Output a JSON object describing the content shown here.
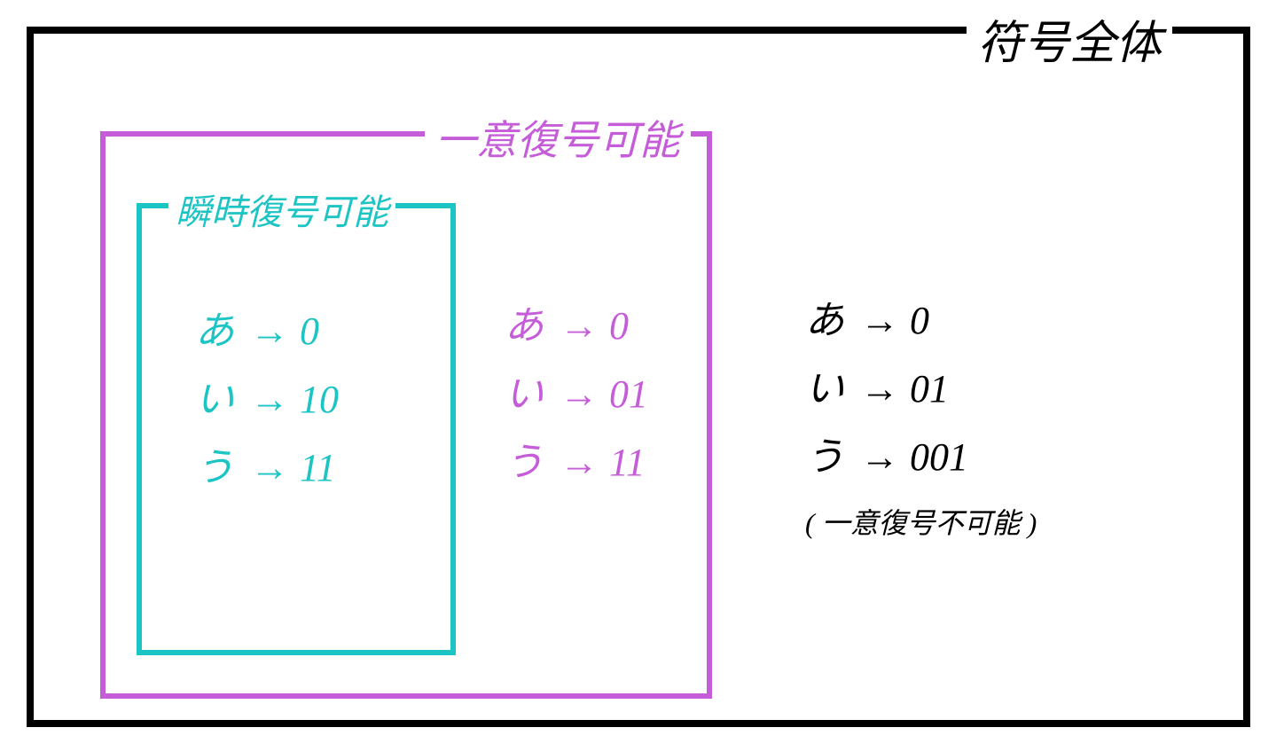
{
  "diagram": {
    "outer": {
      "label": "符号全体",
      "border_color": "#000000",
      "border_width": 8,
      "code": {
        "color": "#000000",
        "rows": [
          {
            "sym": "あ",
            "val": "0"
          },
          {
            "sym": "い",
            "val": "01"
          },
          {
            "sym": "う",
            "val": "001"
          }
        ],
        "note": "( 一意復号不可能 )"
      }
    },
    "middle": {
      "label": "一意復号可能",
      "border_color": "#c65dd8",
      "border_width": 6,
      "code": {
        "color": "#c65dd8",
        "rows": [
          {
            "sym": "あ",
            "val": "0"
          },
          {
            "sym": "い",
            "val": "01"
          },
          {
            "sym": "う",
            "val": "11"
          }
        ]
      }
    },
    "inner": {
      "label": "瞬時復号可能",
      "border_color": "#1dc4c4",
      "border_width": 6,
      "code": {
        "color": "#1dc4c4",
        "rows": [
          {
            "sym": "あ",
            "val": "0"
          },
          {
            "sym": "い",
            "val": "10"
          },
          {
            "sym": "う",
            "val": "11"
          }
        ]
      }
    },
    "arrow_glyph": "→",
    "background_color": "#ffffff",
    "font_size_label_outer": 52,
    "font_size_label_middle": 46,
    "font_size_label_inner": 40,
    "font_size_code": 44,
    "font_size_note": 32
  }
}
